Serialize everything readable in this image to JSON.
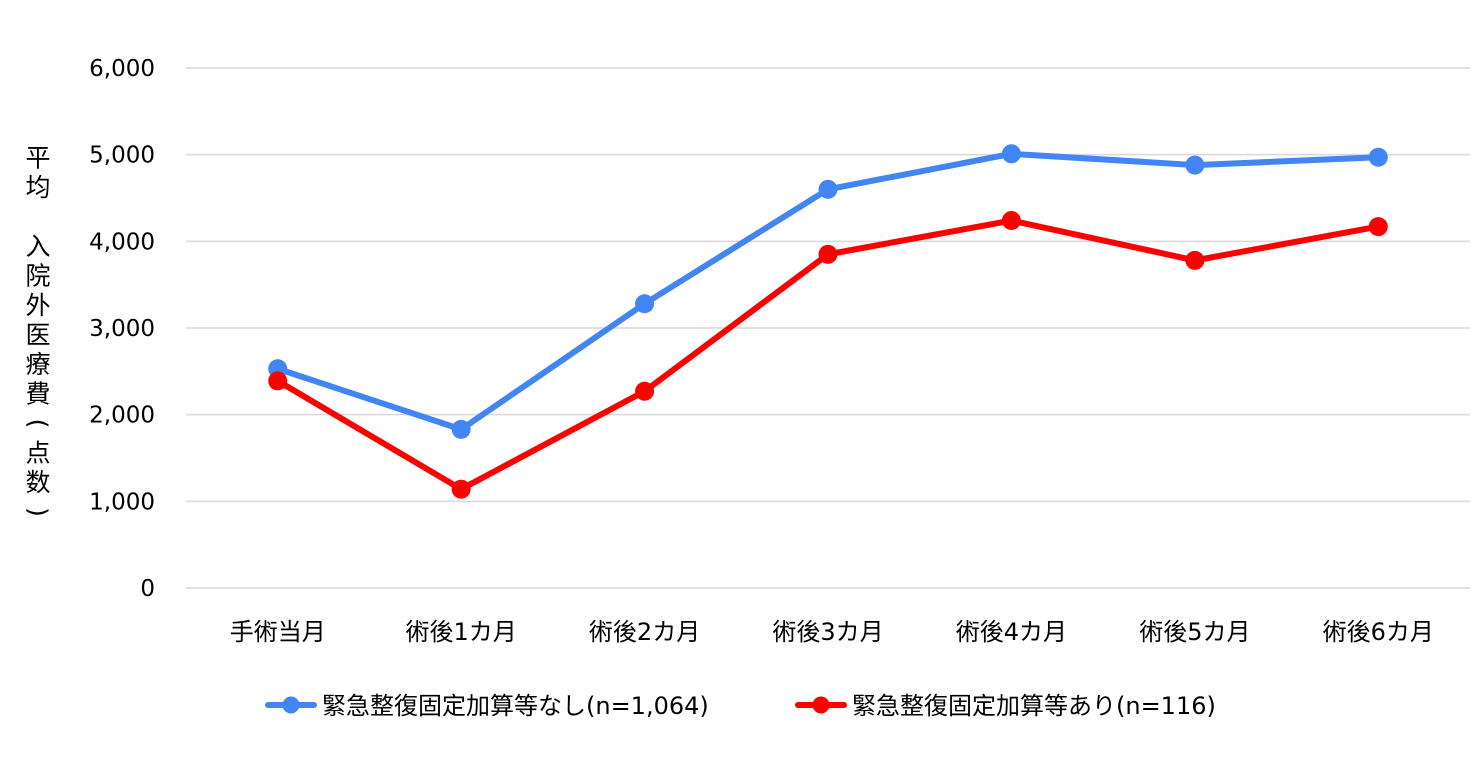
{
  "chart_data": {
    "type": "line",
    "categories": [
      "手術当月",
      "術後1カ月",
      "術後2カ月",
      "術後3カ月",
      "術後4カ月",
      "術後5カ月",
      "術後6カ月"
    ],
    "series": [
      {
        "name": "緊急整復固定加算等なし(n=1,064)",
        "color": "#4285f4",
        "values": [
          2530,
          1830,
          3280,
          4600,
          5010,
          4880,
          4970
        ]
      },
      {
        "name": "緊急整復固定加算等あり(n=116)",
        "color": "#ff0000",
        "values": [
          2390,
          1140,
          2270,
          3850,
          4240,
          3780,
          4170
        ]
      }
    ],
    "title": "",
    "xlabel": "",
    "ylabel": "平均　入院外医療費(点数)",
    "ylim": [
      0,
      6000
    ],
    "yticks": [
      0,
      1000,
      2000,
      3000,
      4000,
      5000,
      6000
    ],
    "ytick_labels": [
      "0",
      "1,000",
      "2,000",
      "3,000",
      "4,000",
      "5,000",
      "6,000"
    ],
    "grid": true,
    "legend": "bottom"
  }
}
